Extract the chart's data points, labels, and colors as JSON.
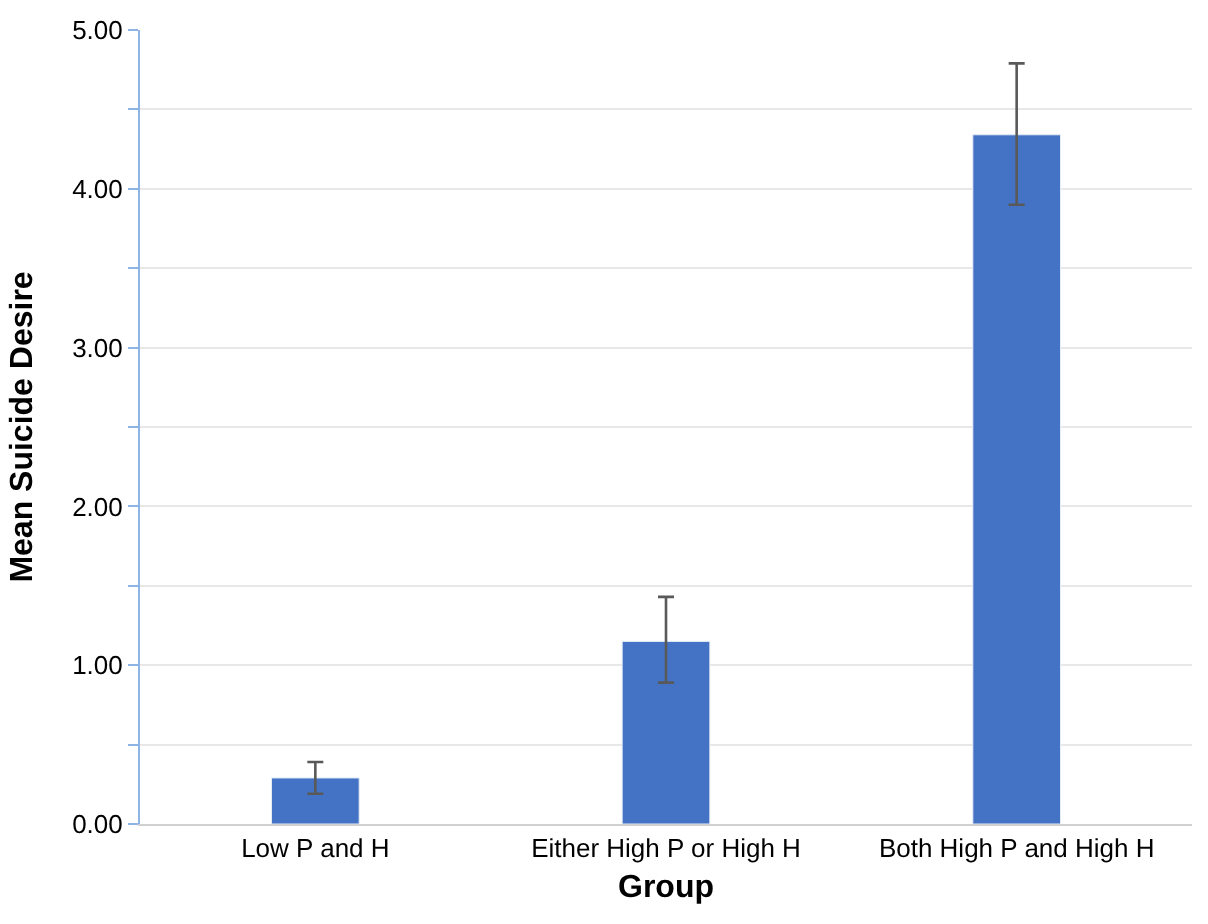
{
  "chart_data": {
    "type": "bar",
    "xlabel": "Group",
    "ylabel": "Mean Suicide Desire",
    "categories": [
      "Low P and H",
      "Either High P or High H",
      "Both High P and High H"
    ],
    "values": [
      0.29,
      1.15,
      4.34
    ],
    "errors": [
      [
        0.19,
        0.39
      ],
      [
        0.89,
        1.43
      ],
      [
        3.9,
        4.79
      ]
    ],
    "color": "#4472c4",
    "ylim": [
      0,
      5
    ],
    "yticks": [
      {
        "value": 0,
        "label": "0.00"
      },
      {
        "value": 0.5,
        "label": null
      },
      {
        "value": 1,
        "label": "1.00"
      },
      {
        "value": 1.5,
        "label": null
      },
      {
        "value": 2,
        "label": "2.00"
      },
      {
        "value": 2.5,
        "label": null
      },
      {
        "value": 3,
        "label": "3.00"
      },
      {
        "value": 3.5,
        "label": null
      },
      {
        "value": 4,
        "label": "4.00"
      },
      {
        "value": 4.5,
        "label": null
      },
      {
        "value": 5,
        "label": "5.00"
      }
    ],
    "grid": "y",
    "legend": false
  }
}
